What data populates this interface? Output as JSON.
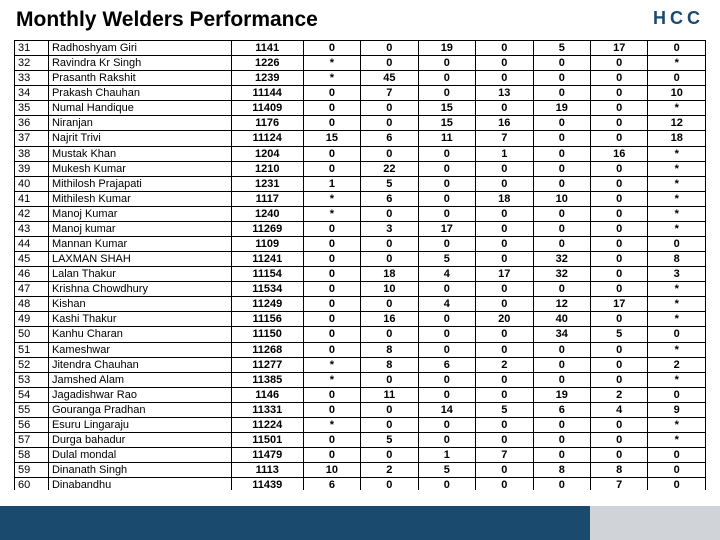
{
  "title": "Monthly Welders Performance",
  "logo": "HCC",
  "colors": {
    "brand": "#1a4a6e",
    "footer_gray": "#d0d4d8",
    "border": "#000000",
    "background": "#ffffff"
  },
  "table": {
    "columns": [
      "idx",
      "name",
      "code",
      "c1",
      "c2",
      "c3",
      "c4",
      "c5",
      "c6",
      "c7"
    ],
    "rows": [
      [
        "31",
        "Radhoshyam Giri",
        "1141",
        "0",
        "0",
        "19",
        "0",
        "5",
        "17",
        "0"
      ],
      [
        "32",
        "Ravindra Kr Singh",
        "1226",
        "*",
        "0",
        "0",
        "0",
        "0",
        "0",
        "*"
      ],
      [
        "33",
        "Prasanth Rakshit",
        "1239",
        "*",
        "45",
        "0",
        "0",
        "0",
        "0",
        "0"
      ],
      [
        "34",
        "Prakash Chauhan",
        "11144",
        "0",
        "7",
        "0",
        "13",
        "0",
        "0",
        "10"
      ],
      [
        "35",
        "Numal Handique",
        "11409",
        "0",
        "0",
        "15",
        "0",
        "19",
        "0",
        "*"
      ],
      [
        "36",
        "Niranjan",
        "1176",
        "0",
        "0",
        "15",
        "16",
        "0",
        "0",
        "12"
      ],
      [
        "37",
        "Najrit Trivi",
        "11124",
        "15",
        "6",
        "11",
        "7",
        "0",
        "0",
        "18"
      ],
      [
        "38",
        "Mustak Khan",
        "1204",
        "0",
        "0",
        "0",
        "1",
        "0",
        "16",
        "*"
      ],
      [
        "39",
        "Mukesh Kumar",
        "1210",
        "0",
        "22",
        "0",
        "0",
        "0",
        "0",
        "*"
      ],
      [
        "40",
        "Mithilosh Prajapati",
        "1231",
        "1",
        "5",
        "0",
        "0",
        "0",
        "0",
        "*"
      ],
      [
        "41",
        "Mithilesh Kumar",
        "1117",
        "*",
        "6",
        "0",
        "18",
        "10",
        "0",
        "*"
      ],
      [
        "42",
        "Manoj Kumar",
        "1240",
        "*",
        "0",
        "0",
        "0",
        "0",
        "0",
        "*"
      ],
      [
        "43",
        "Manoj kumar",
        "11269",
        "0",
        "3",
        "17",
        "0",
        "0",
        "0",
        "*"
      ],
      [
        "44",
        "Mannan Kumar",
        "1109",
        "0",
        "0",
        "0",
        "0",
        "0",
        "0",
        "0"
      ],
      [
        "45",
        "LAXMAN SHAH",
        "11241",
        "0",
        "0",
        "5",
        "0",
        "32",
        "0",
        "8"
      ],
      [
        "46",
        "Lalan Thakur",
        "11154",
        "0",
        "18",
        "4",
        "17",
        "32",
        "0",
        "3"
      ],
      [
        "47",
        "Krishna Chowdhury",
        "11534",
        "0",
        "10",
        "0",
        "0",
        "0",
        "0",
        "*"
      ],
      [
        "48",
        "Kishan",
        "11249",
        "0",
        "0",
        "4",
        "0",
        "12",
        "17",
        "*"
      ],
      [
        "49",
        "Kashi Thakur",
        "11156",
        "0",
        "16",
        "0",
        "20",
        "40",
        "0",
        "*"
      ],
      [
        "50",
        "Kanhu Charan",
        "11150",
        "0",
        "0",
        "0",
        "0",
        "34",
        "5",
        "0"
      ],
      [
        "51",
        "Kameshwar",
        "11268",
        "0",
        "8",
        "0",
        "0",
        "0",
        "0",
        "*"
      ],
      [
        "52",
        "Jitendra Chauhan",
        "11277",
        "*",
        "8",
        "6",
        "2",
        "0",
        "0",
        "2"
      ],
      [
        "53",
        "Jamshed Alam",
        "11385",
        "*",
        "0",
        "0",
        "0",
        "0",
        "0",
        "*"
      ],
      [
        "54",
        "Jagadishwar Rao",
        "1146",
        "0",
        "11",
        "0",
        "0",
        "19",
        "2",
        "0"
      ],
      [
        "55",
        "Gouranga Pradhan",
        "11331",
        "0",
        "0",
        "14",
        "5",
        "6",
        "4",
        "9"
      ],
      [
        "56",
        "Esuru Lingaraju",
        "11224",
        "*",
        "0",
        "0",
        "0",
        "0",
        "0",
        "*"
      ],
      [
        "57",
        "Durga bahadur",
        "11501",
        "0",
        "5",
        "0",
        "0",
        "0",
        "0",
        "*"
      ],
      [
        "58",
        "Dulal mondal",
        "11479",
        "0",
        "0",
        "1",
        "7",
        "0",
        "0",
        "0"
      ],
      [
        "59",
        "Dinanath Singh",
        "1113",
        "10",
        "2",
        "5",
        "0",
        "8",
        "8",
        "0"
      ],
      [
        "60",
        "Dinabandhu",
        "11439",
        "6",
        "0",
        "0",
        "0",
        "0",
        "7",
        "0"
      ]
    ]
  }
}
